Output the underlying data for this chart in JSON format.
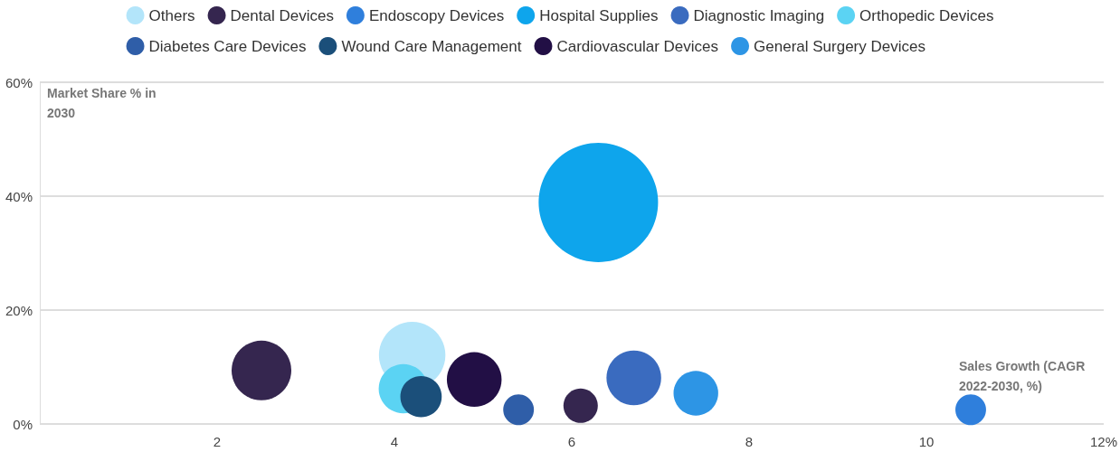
{
  "chart_data": {
    "type": "bubble",
    "xlabel": "Sales Growth (CAGR 2022-2030, %)",
    "ylabel": "Market Share % in 2030",
    "series": [
      {
        "name": "Others",
        "color": "#b3e5fa",
        "x": [
          4.2
        ],
        "values": [
          12.1
        ],
        "sizes": [
          0.31
        ]
      },
      {
        "name": "Dental Devices",
        "color": "#35264f",
        "x": [
          2.5,
          6.1
        ],
        "values": [
          9.4,
          3.2
        ],
        "sizes": [
          0.25,
          0.083
        ]
      },
      {
        "name": "Endoscopy Devices",
        "color": "#2f7fdc",
        "x": [
          10.5
        ],
        "values": [
          2.5
        ],
        "sizes": [
          0.066
        ]
      },
      {
        "name": "Hospital Supplies",
        "color": "#0ea5ec",
        "x": [
          6.3
        ],
        "values": [
          38.9
        ],
        "sizes": [
          1
        ]
      },
      {
        "name": "Diagnostic Imaging",
        "color": "#3a6bbf",
        "x": [
          6.7
        ],
        "values": [
          8.1
        ],
        "sizes": [
          0.21
        ]
      },
      {
        "name": "Orthopedic Devices",
        "color": "#5bd3f3",
        "x": [
          4.1
        ],
        "values": [
          6.2
        ],
        "sizes": [
          0.17
        ]
      },
      {
        "name": "Diabetes Care Devices",
        "color": "#2f5ea8",
        "x": [
          5.4
        ],
        "values": [
          2.5
        ],
        "sizes": [
          0.066
        ]
      },
      {
        "name": "Wound Care Management",
        "color": "#1b4f7a",
        "x": [
          4.3
        ],
        "values": [
          4.8
        ],
        "sizes": [
          0.12
        ]
      },
      {
        "name": "Cardiovascular Devices",
        "color": "#220f45",
        "x": [
          4.9
        ],
        "values": [
          7.8
        ],
        "sizes": [
          0.21
        ]
      },
      {
        "name": "General Surgery Devices",
        "color": "#2d95e5",
        "x": [
          7.4
        ],
        "values": [
          5.4
        ],
        "sizes": [
          0.14
        ]
      }
    ],
    "xlim": [
      0,
      12
    ],
    "xticks": [
      2,
      4,
      6,
      8,
      10,
      {
        "value": 12,
        "label": "12%"
      }
    ],
    "ylim": [
      0,
      60
    ],
    "yticks": [
      {
        "value": 0,
        "label": "0%"
      },
      {
        "value": 20,
        "label": "20%"
      },
      {
        "value": 40,
        "label": "40%"
      },
      {
        "value": 60,
        "label": "60%"
      }
    ],
    "grid": "y",
    "legend": "top"
  }
}
